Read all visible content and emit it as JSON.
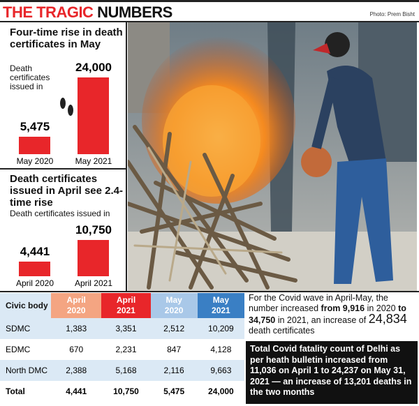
{
  "header": {
    "title_red": "THE TRAGIC",
    "title_black": "NUMBERS",
    "credit": "Photo: Prem Bisht"
  },
  "chart_data": [
    {
      "type": "bar",
      "title": "Four-time rise in death certificates in May",
      "subtitle": "Death certificates issued in",
      "categories": [
        "May 2020",
        "May 2021"
      ],
      "values": [
        5475,
        24000
      ],
      "value_labels": [
        "5,475",
        "24,000"
      ],
      "color": "#e8262a"
    },
    {
      "type": "bar",
      "title": "Death certificates issued in April see 2.4-time rise",
      "subtitle": "Death certificates issued in",
      "categories": [
        "April 2020",
        "April 2021"
      ],
      "values": [
        4441,
        10750
      ],
      "value_labels": [
        "4,441",
        "10,750"
      ],
      "color": "#e8262a"
    }
  ],
  "table": {
    "header": [
      "Civic body",
      "April 2020",
      "April 2021",
      "May 2020",
      "May 2021"
    ],
    "rows": [
      [
        "SDMC",
        "1,383",
        "3,351",
        "2,512",
        "10,209"
      ],
      [
        "EDMC",
        "670",
        "2,231",
        "847",
        "4,128"
      ],
      [
        "North DMC",
        "2,388",
        "5,168",
        "2,116",
        "9,663"
      ],
      [
        "Total",
        "4,441",
        "10,750",
        "5,475",
        "24,000"
      ]
    ]
  },
  "note": {
    "text1": "For the Covid wave in April-May, the number increased",
    "bold1": "from 9,916",
    "text2": "in 2020",
    "bold2": "to 34,750",
    "text3": "in 2021, an increase of",
    "big": "24,834",
    "text4": "death certificates"
  },
  "box": "Total Covid fatality count of Delhi as per heath bulletin increased from 11,036 on April 1 to 24,237 on May 31, 2021 — an increase of 13,201 deaths in the two months"
}
